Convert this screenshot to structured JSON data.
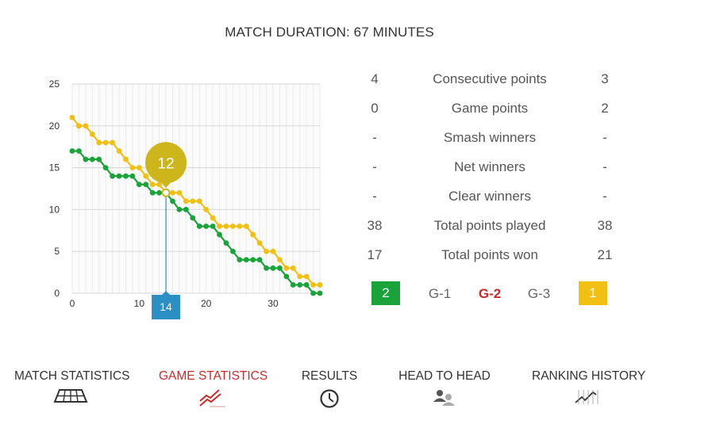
{
  "header": {
    "duration_text": "MATCH DURATION: 67 MINUTES"
  },
  "chart_data": {
    "type": "line",
    "title": "",
    "xlabel": "",
    "ylabel": "",
    "xlim": [
      0,
      37
    ],
    "ylim": [
      0,
      25
    ],
    "x_ticks": [
      0,
      10,
      20,
      30
    ],
    "y_ticks": [
      0,
      5,
      10,
      15,
      20,
      25
    ],
    "grid": true,
    "series": [
      {
        "color": "#1aa33a",
        "values": [
          17,
          17,
          16,
          16,
          16,
          15,
          14,
          14,
          14,
          14,
          13,
          13,
          12,
          12,
          12,
          11,
          10,
          10,
          9,
          8,
          8,
          8,
          7,
          6,
          5,
          4,
          4,
          4,
          4,
          3,
          3,
          3,
          2,
          1,
          1,
          1,
          0,
          0
        ]
      },
      {
        "color": "#f2c012",
        "values": [
          21,
          20,
          20,
          19,
          18,
          18,
          18,
          17,
          16,
          15,
          15,
          14,
          13,
          13,
          12,
          12,
          12,
          11,
          11,
          11,
          10,
          9,
          8,
          8,
          8,
          8,
          8,
          7,
          6,
          5,
          5,
          4,
          3,
          3,
          2,
          2,
          1,
          1
        ]
      }
    ],
    "highlight": {
      "x": 14,
      "x_label": "14",
      "value": 12,
      "value_label": "12",
      "marker_color": "#cdb51c",
      "badge_color": "#2c8fc3"
    }
  },
  "stats": [
    {
      "left": "4",
      "label": "Consecutive points",
      "right": "3"
    },
    {
      "left": "0",
      "label": "Game points",
      "right": "2"
    },
    {
      "left": "-",
      "label": "Smash winners",
      "right": "-"
    },
    {
      "left": "-",
      "label": "Net winners",
      "right": "-"
    },
    {
      "left": "-",
      "label": "Clear winners",
      "right": "-"
    },
    {
      "left": "38",
      "label": "Total points played",
      "right": "38"
    },
    {
      "left": "17",
      "label": "Total points won",
      "right": "21"
    }
  ],
  "games": {
    "left_score": "2",
    "left_color": "#1aa33a",
    "g1": "G-1",
    "g2": "G-2",
    "g3": "G-3",
    "right_score": "1",
    "right_color": "#f2c012"
  },
  "nav": [
    {
      "label": "MATCH STATISTICS",
      "icon": "court-icon"
    },
    {
      "label": "GAME STATISTICS",
      "icon": "trend-lines-icon",
      "active": true
    },
    {
      "label": "RESULTS",
      "icon": "clock-icon"
    },
    {
      "label": "HEAD TO HEAD",
      "icon": "users-icon"
    },
    {
      "label": "RANKING HISTORY",
      "icon": "ranking-line-icon"
    }
  ]
}
